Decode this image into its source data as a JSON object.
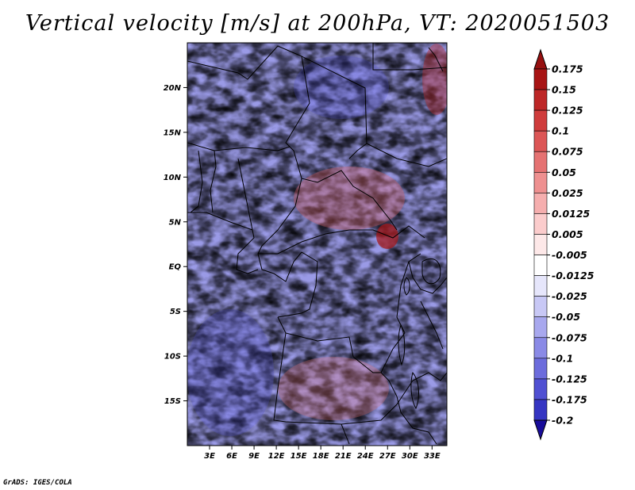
{
  "title": "Vertical velocity [m/s] at 200hPa, VT: 2020051503",
  "credit": "GrADS: IGES/COLA",
  "map": {
    "lon_range": [
      0,
      35
    ],
    "lat_range": [
      -20,
      25
    ],
    "lat_ticks": [
      {
        "value": 20,
        "label": "20N"
      },
      {
        "value": 15,
        "label": "15N"
      },
      {
        "value": 10,
        "label": "10N"
      },
      {
        "value": 5,
        "label": "5N"
      },
      {
        "value": 0,
        "label": "EQ"
      },
      {
        "value": -5,
        "label": "5S"
      },
      {
        "value": -10,
        "label": "10S"
      },
      {
        "value": -15,
        "label": "15S"
      }
    ],
    "lon_ticks": [
      {
        "value": 3,
        "label": "3E"
      },
      {
        "value": 6,
        "label": "6E"
      },
      {
        "value": 9,
        "label": "9E"
      },
      {
        "value": 12,
        "label": "12E"
      },
      {
        "value": 15,
        "label": "15E"
      },
      {
        "value": 18,
        "label": "18E"
      },
      {
        "value": 21,
        "label": "21E"
      },
      {
        "value": 24,
        "label": "24E"
      },
      {
        "value": 27,
        "label": "27E"
      },
      {
        "value": 30,
        "label": "30E"
      },
      {
        "value": 33,
        "label": "33E"
      }
    ]
  },
  "colorbar": {
    "levels": [
      {
        "label": "0.175",
        "color": "#a81414"
      },
      {
        "label": "0.15",
        "color": "#bd2727"
      },
      {
        "label": "0.125",
        "color": "#cf3c3c"
      },
      {
        "label": "0.1",
        "color": "#dc5656"
      },
      {
        "label": "0.075",
        "color": "#e57272"
      },
      {
        "label": "0.05",
        "color": "#ee9090"
      },
      {
        "label": "0.025",
        "color": "#f5aeae"
      },
      {
        "label": "0.0125",
        "color": "#fbcccc"
      },
      {
        "label": "0.005",
        "color": "#fde8e8"
      },
      {
        "label": "-0.005",
        "color": "#ffffff"
      },
      {
        "label": "-0.0125",
        "color": "#e6e6fb"
      },
      {
        "label": "-0.025",
        "color": "#c8c8f5"
      },
      {
        "label": "-0.05",
        "color": "#a8a8ee"
      },
      {
        "label": "-0.075",
        "color": "#8a8ae6"
      },
      {
        "label": "-0.1",
        "color": "#6c6cdc"
      },
      {
        "label": "-0.125",
        "color": "#5050d2"
      },
      {
        "label": "-0.175",
        "color": "#3535c2"
      },
      {
        "label": "-0.2",
        "color": "#2020ad"
      }
    ],
    "top_arrow_color": "#961010",
    "bottom_arrow_color": "#180c9a"
  }
}
